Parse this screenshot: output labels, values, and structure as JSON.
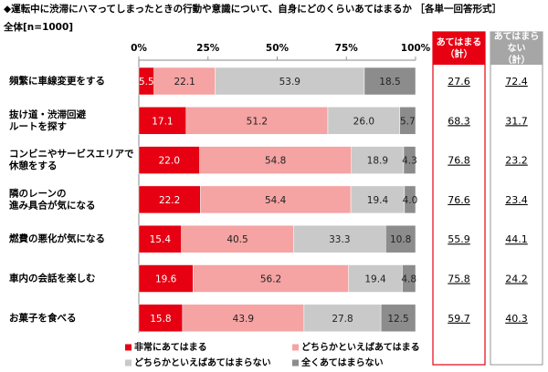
{
  "chart_data": {
    "type": "stacked-bar-horizontal",
    "title": "◆運転中に渋滞にハマってしまったときの行動や意識について、自身にどのくらいあてはまるか ［各単一回答形式］",
    "subtitle": "全体[n=1000]",
    "categories": [
      "頻繁に車線変更をする",
      "抜け道・渋滞回避\nルートを探す",
      "コンビニやサービスエリアで\n休憩をする",
      "隣のレーンの\n進み具合が気になる",
      "燃費の悪化が気になる",
      "車内の会話を楽しむ",
      "お菓子を食べる"
    ],
    "series": [
      {
        "name": "非常にあてはまる",
        "color": "#e60012",
        "values": [
          5.5,
          17.1,
          22.0,
          22.2,
          15.4,
          19.6,
          15.8
        ],
        "value_labels": [
          "5.5",
          "17.1",
          "22.0",
          "22.2",
          "15.4",
          "19.6",
          "15.8"
        ]
      },
      {
        "name": "どちらかといえばあてはまる",
        "color": "#f5a3a3",
        "values": [
          22.1,
          51.2,
          54.8,
          54.4,
          40.5,
          56.2,
          43.9
        ]
      },
      {
        "name": "どちらかといえばあてはまらない",
        "color": "#c9c9c9",
        "values": [
          53.9,
          26.0,
          18.9,
          19.4,
          33.3,
          19.4,
          27.8
        ],
        "value_labels": [
          "53.9",
          "26.0",
          "18.9",
          "19.4",
          "33.3",
          "19.4",
          "27.8"
        ]
      },
      {
        "name": "全くあてはまらない",
        "color": "#8c8c8c",
        "values": [
          18.5,
          5.7,
          4.3,
          4.0,
          10.8,
          4.8,
          12.5
        ],
        "value_labels": [
          "18.5",
          "5.7",
          "4.3",
          "4.0",
          "10.8",
          "4.8",
          "12.5"
        ]
      }
    ],
    "xlim": [
      0,
      100
    ],
    "xticks": [
      {
        "value": 0,
        "label": "0%"
      },
      {
        "value": 25,
        "label": "25%"
      },
      {
        "value": 50,
        "label": "50%"
      },
      {
        "value": 75,
        "label": "75%"
      },
      {
        "value": 100,
        "label": "100%"
      }
    ],
    "summary": [
      {
        "name": "あてはまる\n（計）",
        "color": "#e60012",
        "values": [
          27.6,
          68.3,
          76.8,
          76.6,
          55.9,
          75.8,
          59.7
        ]
      },
      {
        "name": "あてはまら\nない\n（計）",
        "color": "#a6a6a6",
        "values": [
          72.4,
          31.7,
          23.2,
          23.4,
          44.1,
          24.2,
          40.3
        ]
      }
    ]
  }
}
